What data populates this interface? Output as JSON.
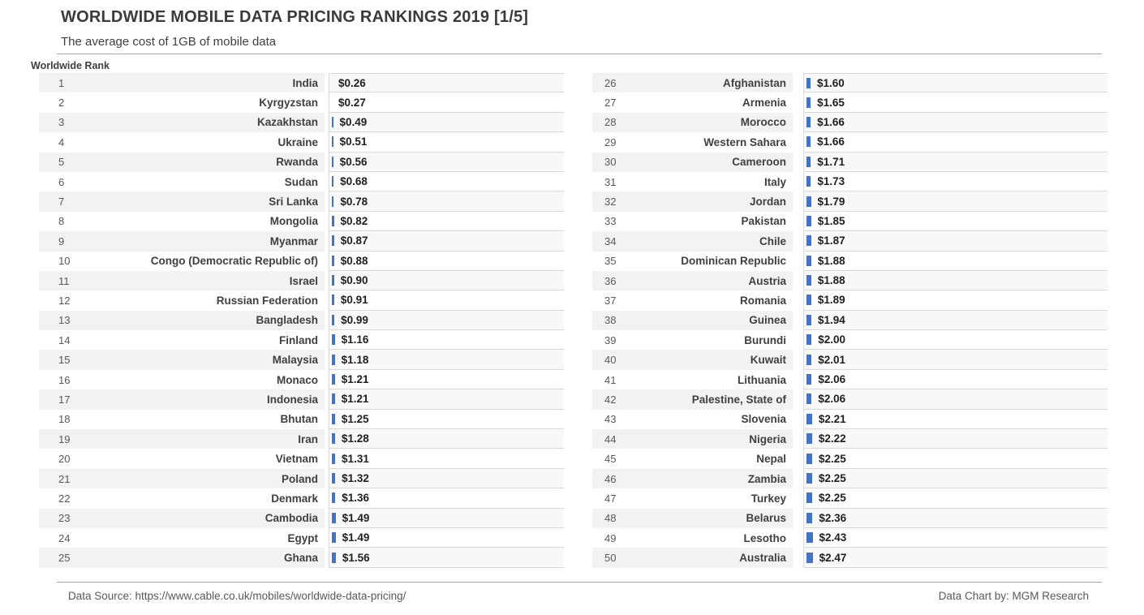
{
  "header": {
    "title": "WORLDWIDE MOBILE DATA PRICING RANKINGS 2019 [1/5]",
    "subtitle": "The average cost of 1GB of mobile data",
    "column_label": "Worldwide Rank"
  },
  "footer": {
    "source": "Data Source: https://www.cable.co.uk/mobiles/worldwide-data-pricing/",
    "credit": "Data Chart by: MGM Research"
  },
  "colors": {
    "bar": "#4472C4",
    "stripe": "#f2f2f2",
    "border": "#d9d9d9",
    "text_dark": "#404040",
    "text_gray": "#595959"
  },
  "chart_data": {
    "type": "bar",
    "orientation": "horizontal",
    "title": "WORLDWIDE MOBILE DATA PRICING RANKINGS 2019 [1/5]",
    "subtitle": "The average cost of 1GB of mobile data",
    "value_unit": "USD per 1GB",
    "value_label_format": "$X.XX",
    "legend": "none",
    "grid": "off",
    "rows": [
      {
        "rank": 1,
        "country": "India",
        "value": 0.26
      },
      {
        "rank": 2,
        "country": "Kyrgyzstan",
        "value": 0.27
      },
      {
        "rank": 3,
        "country": "Kazakhstan",
        "value": 0.49
      },
      {
        "rank": 4,
        "country": "Ukraine",
        "value": 0.51
      },
      {
        "rank": 5,
        "country": "Rwanda",
        "value": 0.56
      },
      {
        "rank": 6,
        "country": "Sudan",
        "value": 0.68
      },
      {
        "rank": 7,
        "country": "Sri Lanka",
        "value": 0.78
      },
      {
        "rank": 8,
        "country": "Mongolia",
        "value": 0.82
      },
      {
        "rank": 9,
        "country": "Myanmar",
        "value": 0.87
      },
      {
        "rank": 10,
        "country": "Congo (Democratic Republic of)",
        "value": 0.88
      },
      {
        "rank": 11,
        "country": "Israel",
        "value": 0.9
      },
      {
        "rank": 12,
        "country": "Russian Federation",
        "value": 0.91
      },
      {
        "rank": 13,
        "country": "Bangladesh",
        "value": 0.99
      },
      {
        "rank": 14,
        "country": "Finland",
        "value": 1.16
      },
      {
        "rank": 15,
        "country": "Malaysia",
        "value": 1.18
      },
      {
        "rank": 16,
        "country": "Monaco",
        "value": 1.21
      },
      {
        "rank": 17,
        "country": "Indonesia",
        "value": 1.21
      },
      {
        "rank": 18,
        "country": "Bhutan",
        "value": 1.25
      },
      {
        "rank": 19,
        "country": "Iran",
        "value": 1.28
      },
      {
        "rank": 20,
        "country": "Vietnam",
        "value": 1.31
      },
      {
        "rank": 21,
        "country": "Poland",
        "value": 1.32
      },
      {
        "rank": 22,
        "country": "Denmark",
        "value": 1.36
      },
      {
        "rank": 23,
        "country": "Cambodia",
        "value": 1.49
      },
      {
        "rank": 24,
        "country": "Egypt",
        "value": 1.49
      },
      {
        "rank": 25,
        "country": "Ghana",
        "value": 1.56
      },
      {
        "rank": 26,
        "country": "Afghanistan",
        "value": 1.6
      },
      {
        "rank": 27,
        "country": "Armenia",
        "value": 1.65
      },
      {
        "rank": 28,
        "country": "Morocco",
        "value": 1.66
      },
      {
        "rank": 29,
        "country": "Western Sahara",
        "value": 1.66
      },
      {
        "rank": 30,
        "country": "Cameroon",
        "value": 1.71
      },
      {
        "rank": 31,
        "country": "Italy",
        "value": 1.73
      },
      {
        "rank": 32,
        "country": "Jordan",
        "value": 1.79
      },
      {
        "rank": 33,
        "country": "Pakistan",
        "value": 1.85
      },
      {
        "rank": 34,
        "country": "Chile",
        "value": 1.87
      },
      {
        "rank": 35,
        "country": "Dominican Republic",
        "value": 1.88
      },
      {
        "rank": 36,
        "country": "Austria",
        "value": 1.88
      },
      {
        "rank": 37,
        "country": "Romania",
        "value": 1.89
      },
      {
        "rank": 38,
        "country": "Guinea",
        "value": 1.94
      },
      {
        "rank": 39,
        "country": "Burundi",
        "value": 2.0
      },
      {
        "rank": 40,
        "country": "Kuwait",
        "value": 2.01
      },
      {
        "rank": 41,
        "country": "Lithuania",
        "value": 2.06
      },
      {
        "rank": 42,
        "country": "Palestine, State of",
        "value": 2.06
      },
      {
        "rank": 43,
        "country": "Slovenia",
        "value": 2.21
      },
      {
        "rank": 44,
        "country": "Nigeria",
        "value": 2.22
      },
      {
        "rank": 45,
        "country": "Nepal",
        "value": 2.25
      },
      {
        "rank": 46,
        "country": "Zambia",
        "value": 2.25
      },
      {
        "rank": 47,
        "country": "Turkey",
        "value": 2.25
      },
      {
        "rank": 48,
        "country": "Belarus",
        "value": 2.36
      },
      {
        "rank": 49,
        "country": "Lesotho",
        "value": 2.43
      },
      {
        "rank": 50,
        "country": "Australia",
        "value": 2.47
      }
    ]
  }
}
